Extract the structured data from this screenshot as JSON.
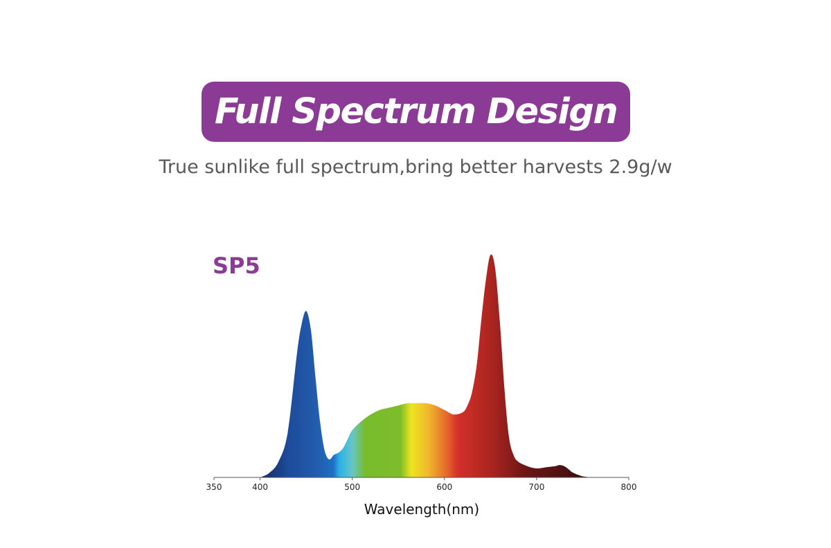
{
  "header": {
    "title": "Full Spectrum Design",
    "subtitle": "True sunlike full spectrum,bring better harvests 2.9g/w"
  },
  "colors": {
    "banner": "#8b3a96",
    "label": "#8b3a96",
    "subtitle": "#595959",
    "axis": "#555555"
  },
  "chart_data": {
    "type": "area",
    "title": "SP5",
    "xlabel": "Wavelength(nm)",
    "ylabel": "",
    "xlim": [
      350,
      800
    ],
    "ylim": [
      0,
      1
    ],
    "xticks": [
      350,
      400,
      500,
      600,
      700,
      800
    ],
    "grid": false,
    "series": [
      {
        "x": [
          400,
          410,
          420,
          430,
          440,
          445,
          450,
          455,
          460,
          465,
          470,
          475,
          480,
          485,
          490,
          495,
          500,
          510,
          520,
          530,
          540,
          550,
          560,
          570,
          580,
          590,
          600,
          610,
          620,
          625,
          630,
          635,
          640,
          645,
          650,
          655,
          660,
          665,
          670,
          675,
          680,
          690,
          700,
          710,
          720,
          725,
          730,
          735,
          740,
          750,
          760
        ],
        "y": [
          0.0,
          0.02,
          0.07,
          0.2,
          0.55,
          0.68,
          0.74,
          0.66,
          0.45,
          0.25,
          0.12,
          0.08,
          0.1,
          0.11,
          0.13,
          0.17,
          0.21,
          0.25,
          0.28,
          0.3,
          0.31,
          0.32,
          0.33,
          0.33,
          0.33,
          0.32,
          0.3,
          0.28,
          0.29,
          0.32,
          0.38,
          0.5,
          0.7,
          0.88,
          0.99,
          0.93,
          0.7,
          0.4,
          0.18,
          0.1,
          0.07,
          0.05,
          0.04,
          0.045,
          0.05,
          0.055,
          0.05,
          0.035,
          0.02,
          0.005,
          0.0
        ]
      }
    ]
  }
}
